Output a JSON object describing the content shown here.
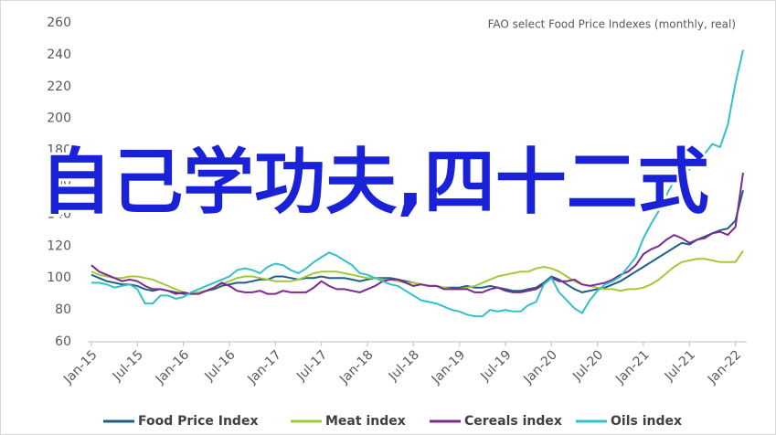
{
  "chart_data": {
    "type": "line",
    "title": "FAO select Food Price Indexes (monthly, real)",
    "overlay_text": "自己学功夫,四十二式",
    "categories": [
      "Jan-15",
      null,
      null,
      null,
      null,
      null,
      "Jul-15",
      null,
      null,
      null,
      null,
      null,
      "Jan-16",
      null,
      null,
      null,
      null,
      null,
      "Jul-16",
      null,
      null,
      null,
      null,
      null,
      "Jan-17",
      null,
      null,
      null,
      null,
      null,
      "Jul-17",
      null,
      null,
      null,
      null,
      null,
      "Jan-18",
      null,
      null,
      null,
      null,
      null,
      "Jul-18",
      null,
      null,
      null,
      null,
      null,
      "Jan-19",
      null,
      null,
      null,
      null,
      null,
      "Jul-19",
      null,
      null,
      null,
      null,
      null,
      "Jan-20",
      null,
      null,
      null,
      null,
      null,
      "Jul-20",
      null,
      null,
      null,
      null,
      null,
      "Jan-21",
      null,
      null,
      null,
      null,
      null,
      "Jul-21",
      null,
      null,
      null,
      null,
      null,
      "Jan-22",
      null
    ],
    "ylim": [
      60,
      260
    ],
    "yticks": [
      60,
      80,
      100,
      120,
      140,
      160,
      180,
      200,
      220,
      240,
      260
    ],
    "grid": false,
    "legend": "bottom",
    "series": [
      {
        "name": "Food Price Index",
        "color": "#1f5f84",
        "values": [
          102,
          100,
          98,
          97,
          96,
          96,
          95,
          93,
          92,
          93,
          92,
          91,
          90,
          90,
          91,
          92,
          93,
          95,
          96,
          97,
          97,
          98,
          99,
          99,
          101,
          101,
          100,
          99,
          100,
          100,
          101,
          100,
          100,
          100,
          99,
          98,
          99,
          100,
          100,
          100,
          99,
          98,
          97,
          96,
          95,
          95,
          94,
          94,
          94,
          95,
          94,
          94,
          95,
          94,
          93,
          92,
          92,
          93,
          94,
          97,
          101,
          99,
          96,
          93,
          91,
          92,
          93,
          94,
          96,
          98,
          101,
          104,
          107,
          110,
          113,
          116,
          119,
          122,
          121,
          124,
          126,
          128,
          130,
          131,
          136,
          155
        ]
      },
      {
        "name": "Meat index",
        "color": "#a3c93a",
        "values": [
          104,
          102,
          101,
          100,
          100,
          101,
          101,
          100,
          99,
          97,
          95,
          93,
          91,
          90,
          91,
          92,
          94,
          96,
          98,
          100,
          101,
          101,
          100,
          99,
          98,
          98,
          98,
          99,
          101,
          103,
          104,
          104,
          104,
          103,
          102,
          101,
          100,
          100,
          99,
          99,
          98,
          97,
          97,
          96,
          95,
          95,
          94,
          93,
          93,
          94,
          95,
          97,
          99,
          101,
          102,
          103,
          104,
          104,
          106,
          107,
          106,
          104,
          101,
          98,
          96,
          95,
          94,
          93,
          93,
          92,
          93,
          93,
          94,
          96,
          99,
          103,
          107,
          110,
          111,
          112,
          112,
          111,
          110,
          110,
          110,
          117
        ]
      },
      {
        "name": "Cereals index",
        "color": "#7d2a8f",
        "values": [
          108,
          104,
          102,
          100,
          98,
          99,
          98,
          95,
          93,
          93,
          92,
          90,
          91,
          90,
          90,
          92,
          94,
          97,
          95,
          92,
          91,
          91,
          92,
          90,
          90,
          92,
          91,
          91,
          91,
          94,
          98,
          95,
          93,
          93,
          92,
          91,
          93,
          95,
          98,
          99,
          99,
          97,
          95,
          96,
          95,
          95,
          93,
          93,
          93,
          93,
          91,
          91,
          93,
          94,
          92,
          91,
          91,
          92,
          93,
          96,
          100,
          98,
          98,
          99,
          96,
          95,
          96,
          97,
          99,
          102,
          104,
          108,
          115,
          118,
          120,
          124,
          127,
          125,
          122,
          124,
          125,
          128,
          129,
          127,
          132,
          166
        ]
      },
      {
        "name": "Oils index",
        "color": "#33c1c9",
        "values": [
          97,
          97,
          96,
          94,
          95,
          96,
          93,
          84,
          84,
          89,
          89,
          87,
          88,
          91,
          93,
          95,
          97,
          99,
          101,
          105,
          106,
          105,
          103,
          107,
          109,
          108,
          105,
          103,
          106,
          110,
          113,
          116,
          114,
          111,
          108,
          103,
          102,
          100,
          98,
          96,
          95,
          92,
          89,
          86,
          85,
          84,
          82,
          80,
          79,
          77,
          76,
          76,
          80,
          79,
          80,
          79,
          79,
          83,
          85,
          96,
          100,
          91,
          86,
          81,
          78,
          86,
          92,
          96,
          98,
          101,
          107,
          113,
          125,
          134,
          142,
          152,
          161,
          166,
          168,
          174,
          178,
          184,
          182,
          196,
          222,
          243
        ]
      }
    ]
  }
}
